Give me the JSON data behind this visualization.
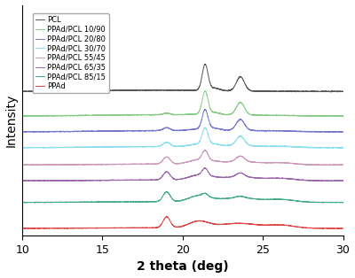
{
  "xlim": [
    10,
    30
  ],
  "xlabel": "2 theta (deg)",
  "ylabel": "Intensity",
  "legend_labels": [
    "PCL",
    "PPAd/PCL 10/90",
    "PPAd/PCL 20/80",
    "PPAd/PCL 30/70",
    "PPAd/PCL 55/45",
    "PPAd/PCL 65/35",
    "PPAd/PCL 85/15",
    "PPAd"
  ],
  "colors": [
    "#555555",
    "#88cc88",
    "#7777cc",
    "#88ddee",
    "#cc99bb",
    "#9966aa",
    "#44aa88",
    "#dd4444"
  ],
  "offsets": [
    0.95,
    0.78,
    0.67,
    0.56,
    0.44,
    0.33,
    0.18,
    0.0
  ],
  "pcl_fracs": [
    1.0,
    0.9,
    0.8,
    0.7,
    0.45,
    0.35,
    0.15,
    0.0
  ],
  "noise_seed": 42,
  "noise_level": 0.008,
  "peak_scale": 0.18,
  "linewidth": 0.7,
  "figsize": [
    4.0,
    3.14
  ],
  "dpi": 100
}
